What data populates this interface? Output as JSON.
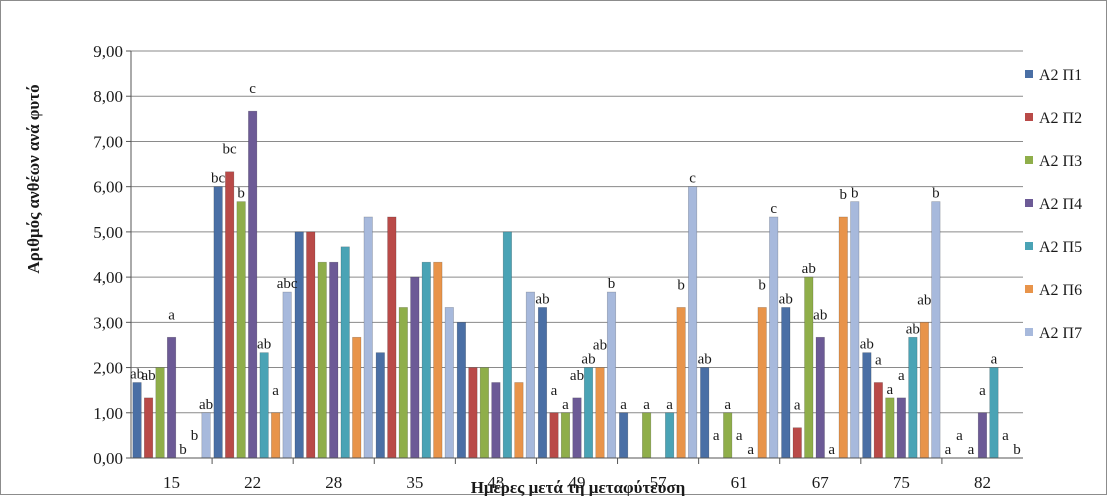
{
  "chart_data": {
    "type": "bar",
    "title": "",
    "xlabel": "Ημέρες μετά τη μεταφύτευση",
    "ylabel": "Αριθμός ανθέων ανά φυτό",
    "ylim": [
      0,
      9
    ],
    "ytick_step": 1,
    "ytick_labels": [
      "0,00",
      "1,00",
      "2,00",
      "3,00",
      "4,00",
      "5,00",
      "6,00",
      "7,00",
      "8,00",
      "9,00"
    ],
    "grid": "horizontal",
    "legend_position": "right (clipped)",
    "categories": [
      "15",
      "22",
      "28",
      "35",
      "43",
      "49",
      "57",
      "61",
      "67",
      "75",
      "82"
    ],
    "series": [
      {
        "name": "A2 Π1",
        "color": "#4a6fa5",
        "values": [
          1.67,
          6.0,
          5.0,
          2.33,
          3.0,
          3.33,
          1.0,
          2.0,
          3.33,
          2.33,
          0
        ],
        "labels": [
          "ab",
          "bc",
          "",
          "",
          "",
          "ab",
          "a",
          "ab",
          "ab",
          "ab",
          "a"
        ]
      },
      {
        "name": "A2 Π2",
        "color": "#b94a48",
        "values": [
          1.33,
          6.33,
          5.0,
          5.33,
          2.0,
          1.0,
          0,
          0,
          0.67,
          1.67,
          0
        ],
        "labels": [
          "ab",
          "bc",
          "",
          "",
          "",
          "a",
          "",
          "a",
          "a",
          "a",
          "a"
        ]
      },
      {
        "name": "A2 Π3",
        "color": "#8fae4a",
        "values": [
          2.0,
          5.67,
          4.33,
          3.33,
          2.0,
          1.0,
          1.0,
          1.0,
          4.0,
          1.33,
          0
        ],
        "labels": [
          "",
          "b",
          "",
          "",
          "",
          "a",
          "a",
          "a",
          "ab",
          "a",
          "a"
        ]
      },
      {
        "name": "A2 Π4",
        "color": "#6c5a96",
        "values": [
          2.67,
          7.67,
          4.33,
          4.0,
          1.67,
          1.33,
          0,
          0,
          2.67,
          1.33,
          1.0
        ],
        "labels": [
          "a",
          "c",
          "",
          "",
          "",
          "ab",
          "",
          "a",
          "ab",
          "a",
          "a"
        ]
      },
      {
        "name": "A2 Π5",
        "color": "#4aa3b5",
        "values": [
          0,
          2.33,
          4.67,
          4.33,
          5.0,
          2.0,
          1.0,
          0,
          0,
          2.67,
          2.0
        ],
        "labels": [
          "b",
          "ab",
          "",
          "",
          "",
          "ab",
          "a",
          "a",
          "a",
          "ab",
          "a"
        ]
      },
      {
        "name": "A2 Π6",
        "color": "#e8944a",
        "values": [
          0,
          1.0,
          2.67,
          4.33,
          1.67,
          2.0,
          3.33,
          3.33,
          5.33,
          3.0,
          0
        ],
        "labels": [
          "b",
          "a",
          "",
          "",
          "",
          "ab",
          "b",
          "b",
          "b",
          "ab",
          "a"
        ]
      },
      {
        "name": "A2 Π7",
        "color": "#a7b9dc",
        "values": [
          1.0,
          3.67,
          5.33,
          3.33,
          3.67,
          3.67,
          6.0,
          5.33,
          5.67,
          5.67,
          0
        ],
        "labels": [
          "ab",
          "abc",
          "",
          "",
          "",
          "b",
          "c",
          "c",
          "b",
          "b",
          "b"
        ]
      }
    ]
  }
}
